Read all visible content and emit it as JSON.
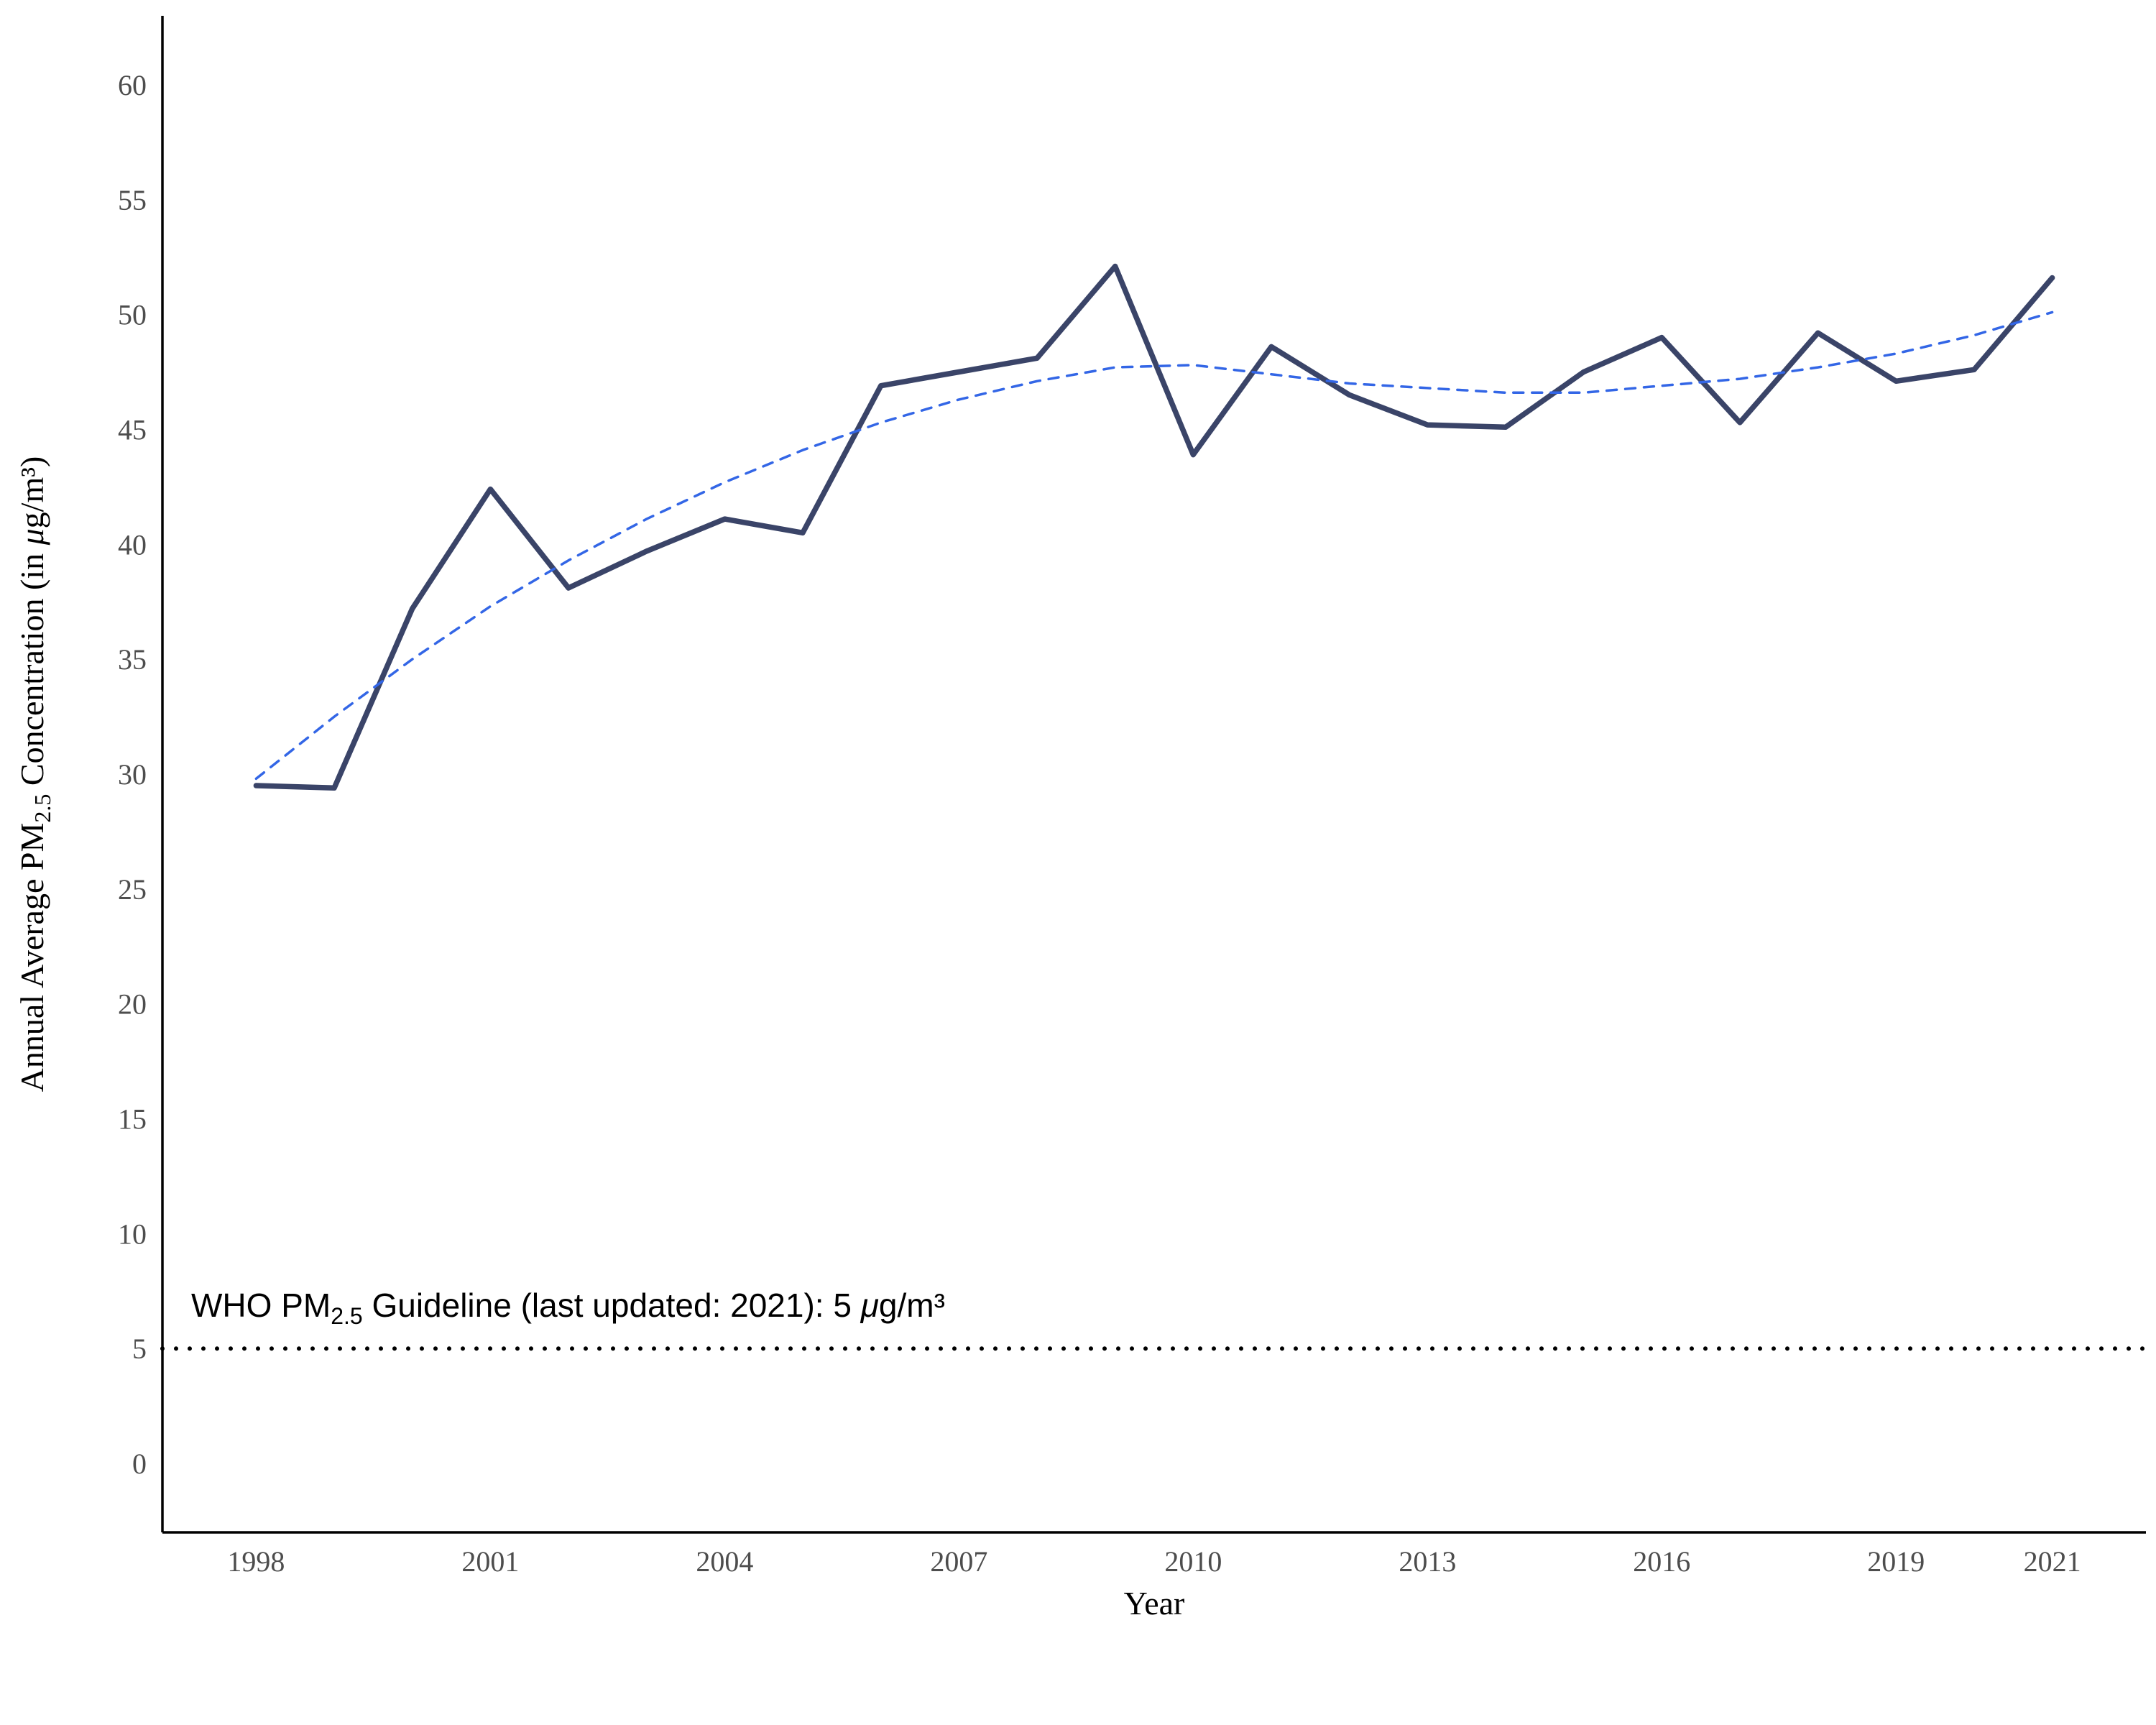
{
  "chart_data": {
    "type": "line",
    "xlabel": "Year",
    "ylabel": {
      "prefix": "Annual Average PM",
      "subscript": "2.5",
      "middle": " Concentration (in ",
      "mu": "μ",
      "suffix": "g/m³)"
    },
    "x_ticks": [
      1998,
      2001,
      2004,
      2007,
      2010,
      2013,
      2016,
      2019,
      2021
    ],
    "y_ticks": [
      0,
      5,
      10,
      15,
      20,
      25,
      30,
      35,
      40,
      45,
      50,
      55,
      60
    ],
    "xlim": [
      1996.8,
      2022.2
    ],
    "ylim": [
      -3,
      63
    ],
    "grid": false,
    "series": [
      {
        "style": "solid",
        "color": "#3a4468",
        "x": [
          1998,
          1999,
          2000,
          2001,
          2002,
          2003,
          2004,
          2005,
          2006,
          2007,
          2008,
          2009,
          2010,
          2011,
          2012,
          2013,
          2014,
          2015,
          2016,
          2017,
          2018,
          2019,
          2020,
          2021
        ],
        "values": [
          29.5,
          29.4,
          37.2,
          42.4,
          38.1,
          39.7,
          41.1,
          40.5,
          46.9,
          47.5,
          48.1,
          52.1,
          43.9,
          48.6,
          46.5,
          45.2,
          45.1,
          47.5,
          49.0,
          45.3,
          49.2,
          47.1,
          47.6,
          51.6
        ]
      },
      {
        "style": "dashed",
        "color": "#3366e6",
        "x": [
          1998,
          1999,
          2000,
          2001,
          2002,
          2003,
          2004,
          2005,
          2006,
          2007,
          2008,
          2009,
          2010,
          2011,
          2012,
          2013,
          2014,
          2015,
          2016,
          2017,
          2018,
          2019,
          2020,
          2021
        ],
        "values": [
          29.8,
          32.5,
          35.0,
          37.3,
          39.3,
          41.1,
          42.7,
          44.1,
          45.3,
          46.3,
          47.1,
          47.7,
          47.8,
          47.4,
          47.0,
          46.8,
          46.6,
          46.6,
          46.9,
          47.2,
          47.7,
          48.3,
          49.1,
          50.1
        ]
      }
    ],
    "reference_line": {
      "value": 5,
      "style": "dotted",
      "color": "#000000",
      "label_prefix": "WHO PM",
      "label_subscript": "2.5",
      "label_middle": " Guideline (last updated: 2021): 5 ",
      "label_mu": "μ",
      "label_suffix": "g/m³"
    }
  }
}
